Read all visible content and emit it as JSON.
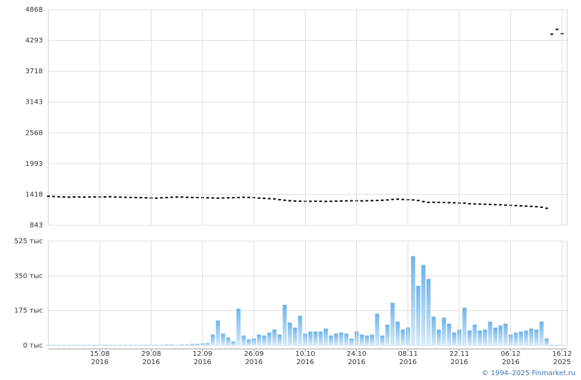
{
  "chart_data": [
    {
      "type": "scatter",
      "color": "#000000",
      "values": [
        1385,
        1380,
        1375,
        1370,
        1368,
        1372,
        1370,
        1368,
        1370,
        1372,
        1370,
        1372,
        1375,
        1370,
        1368,
        1365,
        1362,
        1360,
        1358,
        1355,
        1352,
        1350,
        1355,
        1360,
        1365,
        1370,
        1368,
        1365,
        1362,
        1360,
        1358,
        1355,
        1352,
        1350,
        1352,
        1355,
        1358,
        1360,
        1365,
        1362,
        1358,
        1350,
        1345,
        1340,
        1335,
        1320,
        1310,
        1300,
        1295,
        1292,
        1290,
        1290,
        1292,
        1290,
        1288,
        1290,
        1292,
        1295,
        1298,
        1300,
        1300,
        1298,
        1300,
        1302,
        1305,
        1310,
        1315,
        1325,
        1330,
        1325,
        1320,
        1315,
        1305,
        1285,
        1270,
        1272,
        1270,
        1268,
        1265,
        1262,
        1258,
        1255,
        1245,
        1240,
        1238,
        1235,
        1232,
        1228,
        1225,
        1220,
        1215,
        1210,
        1205,
        1200,
        1195,
        1190,
        1180,
        1160,
        4410,
        4500,
        4420
      ],
      "ylim": [
        843,
        4868
      ],
      "yticks": [
        843,
        1418,
        1993,
        2568,
        3143,
        3718,
        4293,
        4868
      ],
      "grid": true
    },
    {
      "type": "bar",
      "color": "#8cc4ef",
      "categories": [
        null,
        null,
        null,
        null,
        null,
        null,
        null,
        null,
        null,
        null,
        "15.08\n2016",
        null,
        null,
        null,
        null,
        null,
        null,
        null,
        null,
        null,
        "29.08\n2016",
        null,
        null,
        null,
        null,
        null,
        null,
        null,
        null,
        null,
        "12.09\n2016",
        null,
        null,
        null,
        null,
        null,
        null,
        null,
        null,
        null,
        "26.09\n2016",
        null,
        null,
        null,
        null,
        null,
        null,
        null,
        null,
        null,
        "10.10\n2016",
        null,
        null,
        null,
        null,
        null,
        null,
        null,
        null,
        null,
        "24.10\n2016",
        null,
        null,
        null,
        null,
        null,
        null,
        null,
        null,
        null,
        "08.11\n2016",
        null,
        null,
        null,
        null,
        null,
        null,
        null,
        null,
        null,
        "22.11\n2016",
        null,
        null,
        null,
        null,
        null,
        null,
        null,
        null,
        null,
        "06.12\n2016",
        null,
        null,
        null,
        null,
        null,
        null,
        null,
        null,
        null,
        "16.12\n2025"
      ],
      "values": [
        3,
        3,
        3,
        3,
        3,
        3,
        3,
        3,
        3,
        3,
        3,
        3,
        3,
        3,
        3,
        3,
        3,
        3,
        3,
        3,
        3,
        3,
        3,
        5,
        5,
        3,
        5,
        5,
        8,
        8,
        10,
        12,
        55,
        125,
        60,
        40,
        20,
        185,
        50,
        30,
        35,
        55,
        50,
        65,
        80,
        55,
        205,
        115,
        90,
        150,
        60,
        70,
        70,
        70,
        85,
        50,
        60,
        65,
        60,
        35,
        70,
        55,
        50,
        55,
        160,
        50,
        105,
        215,
        120,
        80,
        90,
        450,
        300,
        405,
        335,
        145,
        80,
        140,
        110,
        65,
        80,
        190,
        75,
        105,
        75,
        80,
        120,
        90,
        100,
        110,
        55,
        65,
        70,
        75,
        85,
        80,
        120,
        35,
        3,
        3,
        3
      ],
      "ylim": [
        0,
        525
      ],
      "yticks": [
        {
          "value": 0,
          "label": "0 тыс"
        },
        {
          "value": 175,
          "label": "175 тыс"
        },
        {
          "value": 350,
          "label": "350 тыс"
        },
        {
          "value": 525,
          "label": "525 тыс"
        }
      ],
      "grid": true
    }
  ],
  "credit": "© 1994–2025 Finmarket.ru"
}
